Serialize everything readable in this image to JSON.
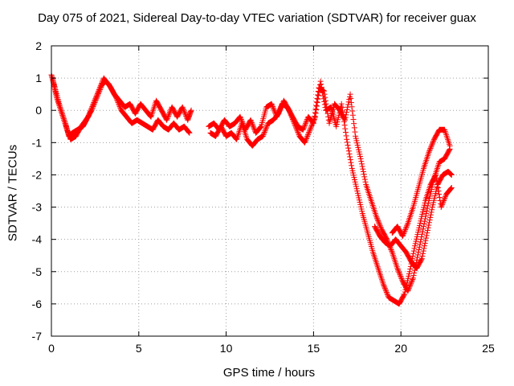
{
  "chart_data": {
    "type": "scatter",
    "title": "Day 075 of 2021, Sidereal Day-to-day VTEC variation (SDTVAR) for receiver guax",
    "xlabel": "GPS time / hours",
    "ylabel": "SDTVAR / TECUs",
    "xlim": [
      0,
      25
    ],
    "ylim": [
      -7,
      2
    ],
    "xticks": [
      "0",
      "5",
      "10",
      "15",
      "20",
      "25"
    ],
    "yticks": [
      "2",
      "1",
      "0",
      "-1",
      "-2",
      "-3",
      "-4",
      "-5",
      "-6",
      "-7"
    ],
    "grid": true,
    "marker": "plus",
    "color": "#ff0000",
    "series": [
      {
        "x": [
          0.0,
          0.2,
          0.5,
          0.8,
          1.0,
          1.2,
          1.5,
          1.8,
          2.0,
          2.3,
          2.6,
          2.9,
          3.1,
          3.3,
          3.6,
          3.9,
          4.2,
          4.5,
          4.8,
          5.1,
          5.4,
          5.7,
          6.0,
          6.3,
          6.6,
          6.9,
          7.2,
          7.5,
          7.8,
          8.0,
          9.0,
          9.3,
          9.6,
          9.9,
          10.2,
          10.5,
          10.8,
          11.1,
          11.4,
          11.7,
          12.0,
          12.3,
          12.6,
          12.9,
          13.2,
          13.5,
          13.8,
          14.1,
          14.4,
          14.7,
          15.0,
          15.3,
          15.6,
          15.9,
          16.2,
          16.5,
          16.8,
          17.1,
          17.4,
          17.7,
          18.0,
          18.3,
          18.6,
          18.9,
          19.2,
          19.5,
          19.8,
          20.1,
          20.4,
          20.7,
          21.0,
          21.3,
          21.6,
          21.9,
          22.2,
          22.5,
          22.8
        ],
        "y": [
          1.1,
          0.7,
          0.1,
          -0.4,
          -0.8,
          -0.7,
          -0.6,
          -0.5,
          -0.3,
          0.0,
          0.4,
          0.8,
          0.9,
          0.8,
          0.5,
          0.3,
          0.1,
          0.2,
          -0.1,
          0.2,
          0.0,
          -0.2,
          0.3,
          0.0,
          -0.3,
          0.1,
          -0.2,
          0.1,
          -0.3,
          0.0,
          -0.5,
          -0.4,
          -0.6,
          -0.3,
          -0.5,
          -0.4,
          -0.2,
          -0.6,
          -0.3,
          -0.7,
          -0.5,
          0.1,
          0.2,
          -0.2,
          0.2,
          0.1,
          -0.2,
          -0.5,
          -0.6,
          -0.2,
          -0.4,
          0.7,
          0.6,
          -0.4,
          0.2,
          0.0,
          -0.3,
          0.5,
          -0.8,
          -1.5,
          -2.3,
          -2.8,
          -3.3,
          -3.7,
          -4.0,
          -4.4,
          -4.9,
          -5.3,
          -5.6,
          -5.2,
          -4.4,
          -3.6,
          -2.8,
          -2.1,
          -1.6,
          -1.5,
          -1.2
        ]
      },
      {
        "x": [
          0.1,
          0.3,
          0.6,
          0.9,
          1.1,
          1.4,
          1.7,
          2.1,
          2.4,
          2.7,
          3.0,
          3.4,
          3.7,
          4.0,
          4.3,
          4.6,
          4.9,
          5.2,
          5.5,
          5.8,
          6.1,
          6.4,
          6.7,
          7.0,
          7.3,
          7.6,
          7.9,
          9.1,
          9.4,
          9.7,
          10.0,
          10.3,
          10.6,
          10.9,
          11.2,
          11.5,
          11.8,
          12.1,
          12.4,
          12.7,
          13.0,
          13.3,
          13.6,
          13.9,
          14.2,
          14.5,
          14.8,
          15.1,
          15.4,
          15.7,
          16.0,
          16.3,
          16.6,
          16.9,
          17.2,
          17.5,
          17.8,
          18.1,
          18.4,
          18.7,
          19.0,
          19.3,
          19.6,
          19.9,
          20.2,
          20.5,
          20.8,
          21.1,
          21.4,
          21.7,
          22.0,
          22.3,
          22.6,
          22.9
        ],
        "y": [
          0.9,
          0.4,
          -0.1,
          -0.6,
          -0.9,
          -0.8,
          -0.5,
          -0.2,
          0.2,
          0.6,
          1.0,
          0.7,
          0.4,
          0.0,
          -0.2,
          -0.4,
          -0.3,
          -0.4,
          -0.5,
          -0.6,
          -0.3,
          -0.5,
          -0.6,
          -0.4,
          -0.6,
          -0.5,
          -0.7,
          -0.7,
          -0.8,
          -0.5,
          -0.8,
          -0.7,
          -0.9,
          -0.4,
          -0.9,
          -1.1,
          -0.9,
          -0.8,
          -0.4,
          -0.3,
          -0.1,
          0.3,
          0.0,
          -0.4,
          -0.8,
          -1.0,
          -0.6,
          -0.2,
          0.9,
          0.0,
          0.1,
          -0.5,
          0.2,
          -0.9,
          -1.8,
          -2.5,
          -3.2,
          -3.8,
          -4.4,
          -4.9,
          -5.4,
          -5.8,
          -5.9,
          -6.0,
          -5.7,
          -5.0,
          -4.2,
          -3.5,
          -2.8,
          -2.3,
          -2.0,
          -3.0,
          -2.6,
          -2.4
        ]
      },
      {
        "x": [
          18.5,
          18.8,
          19.1,
          19.4,
          19.7,
          20.0,
          20.3,
          20.6,
          20.9,
          21.2,
          21.5,
          21.8,
          22.1,
          22.4,
          22.7,
          22.9
        ],
        "y": [
          -3.6,
          -3.9,
          -4.1,
          -4.2,
          -4.0,
          -4.2,
          -4.4,
          -4.7,
          -4.9,
          -4.6,
          -3.8,
          -3.0,
          -2.3,
          -2.0,
          -1.9,
          -2.0
        ]
      },
      {
        "x": [
          19.5,
          19.8,
          20.1,
          20.4,
          20.7,
          21.0,
          21.3,
          21.6,
          21.9,
          22.2,
          22.5,
          22.8
        ],
        "y": [
          -3.8,
          -3.6,
          -3.9,
          -3.5,
          -3.0,
          -2.4,
          -1.8,
          -1.3,
          -0.9,
          -0.6,
          -0.6,
          -1.1
        ]
      }
    ]
  }
}
